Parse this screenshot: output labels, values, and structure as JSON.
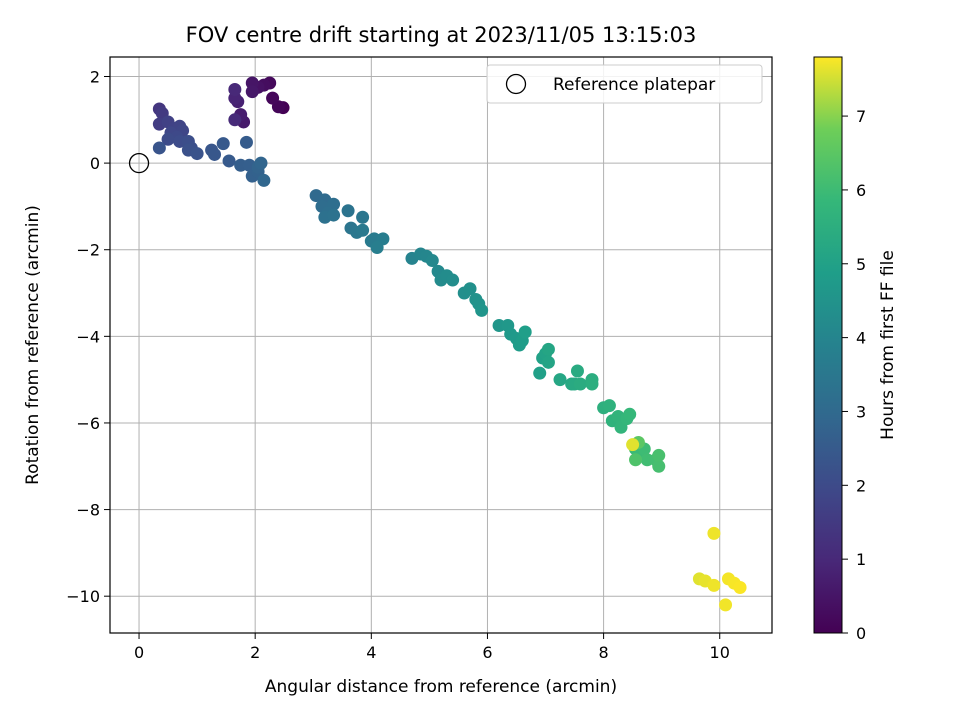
{
  "chart_data": {
    "type": "scatter",
    "title": "FOV centre drift starting at 2023/11/05 13:15:03",
    "xlabel": "Angular distance from reference (arcmin)",
    "ylabel": "Rotation from reference (arcmin)",
    "xlim": [
      -0.5,
      10.9
    ],
    "ylim": [
      -10.85,
      2.45
    ],
    "xticks": [
      0,
      2,
      4,
      6,
      8,
      10
    ],
    "yticks": [
      2,
      0,
      -2,
      -4,
      -6,
      -8,
      -10
    ],
    "grid": true,
    "legend": {
      "entries": [
        "Reference platepar"
      ],
      "placement": "top-right"
    },
    "reference": {
      "x": 0,
      "y": 0,
      "label": "Reference platepar"
    },
    "colorbar": {
      "label": "Hours from first FF file",
      "colormap": "viridis",
      "range": [
        0,
        7.8
      ],
      "ticks": [
        0,
        1,
        2,
        3,
        4,
        5,
        6,
        7
      ]
    },
    "points": [
      [
        2.48,
        1.28,
        0.0
      ],
      [
        2.4,
        1.3,
        0.1
      ],
      [
        2.3,
        1.5,
        0.15
      ],
      [
        2.25,
        1.85,
        0.2
      ],
      [
        2.15,
        1.8,
        0.3
      ],
      [
        2.05,
        1.75,
        0.4
      ],
      [
        1.95,
        1.85,
        0.5
      ],
      [
        1.95,
        1.65,
        0.55
      ],
      [
        1.8,
        0.95,
        0.6
      ],
      [
        1.75,
        1.12,
        0.7
      ],
      [
        1.7,
        1.42,
        0.8
      ],
      [
        1.65,
        1.5,
        0.9
      ],
      [
        1.65,
        1.7,
        1.0
      ],
      [
        1.65,
        1.0,
        1.05
      ],
      [
        0.35,
        1.25,
        1.4
      ],
      [
        0.4,
        1.15,
        1.5
      ],
      [
        0.35,
        0.9,
        1.6
      ],
      [
        0.5,
        0.95,
        1.7
      ],
      [
        0.6,
        0.8,
        1.75
      ],
      [
        0.7,
        0.85,
        1.8
      ],
      [
        0.75,
        0.75,
        1.85
      ],
      [
        0.55,
        0.7,
        1.9
      ],
      [
        0.65,
        0.6,
        1.95
      ],
      [
        0.5,
        0.55,
        2.0
      ],
      [
        0.7,
        0.5,
        2.05
      ],
      [
        0.85,
        0.5,
        2.1
      ],
      [
        0.9,
        0.35,
        2.15
      ],
      [
        0.85,
        0.3,
        2.2
      ],
      [
        1.0,
        0.22,
        2.25
      ],
      [
        0.35,
        0.35,
        2.3
      ],
      [
        1.25,
        0.3,
        2.35
      ],
      [
        1.3,
        0.2,
        2.4
      ],
      [
        1.45,
        0.45,
        2.45
      ],
      [
        1.55,
        0.05,
        2.5
      ],
      [
        1.85,
        0.48,
        2.55
      ],
      [
        1.75,
        -0.05,
        2.6
      ],
      [
        1.9,
        -0.05,
        2.65
      ],
      [
        1.95,
        -0.3,
        2.7
      ],
      [
        2.05,
        -0.2,
        2.75
      ],
      [
        2.05,
        -0.1,
        2.8
      ],
      [
        2.1,
        0.0,
        2.85
      ],
      [
        2.15,
        -0.4,
        2.9
      ],
      [
        3.05,
        -0.75,
        3.0
      ],
      [
        3.2,
        -0.85,
        3.05
      ],
      [
        3.15,
        -1.0,
        3.1
      ],
      [
        3.35,
        -0.95,
        3.15
      ],
      [
        3.25,
        -1.15,
        3.2
      ],
      [
        3.2,
        -1.25,
        3.25
      ],
      [
        3.35,
        -1.2,
        3.3
      ],
      [
        3.6,
        -1.1,
        3.35
      ],
      [
        3.65,
        -1.5,
        3.4
      ],
      [
        3.85,
        -1.25,
        3.45
      ],
      [
        3.75,
        -1.6,
        3.5
      ],
      [
        3.85,
        -1.55,
        3.55
      ],
      [
        4.0,
        -1.8,
        3.6
      ],
      [
        4.05,
        -1.75,
        3.65
      ],
      [
        4.2,
        -1.75,
        3.7
      ],
      [
        4.1,
        -1.95,
        3.75
      ],
      [
        4.7,
        -2.2,
        3.95
      ],
      [
        4.85,
        -2.1,
        4.0
      ],
      [
        4.95,
        -2.15,
        4.05
      ],
      [
        5.05,
        -2.25,
        4.1
      ],
      [
        5.15,
        -2.5,
        4.15
      ],
      [
        5.2,
        -2.7,
        4.2
      ],
      [
        5.3,
        -2.6,
        4.25
      ],
      [
        5.4,
        -2.7,
        4.3
      ],
      [
        5.6,
        -3.0,
        4.35
      ],
      [
        5.7,
        -2.9,
        4.4
      ],
      [
        5.8,
        -3.15,
        4.45
      ],
      [
        5.85,
        -3.25,
        4.5
      ],
      [
        5.9,
        -3.4,
        4.55
      ],
      [
        6.2,
        -3.75,
        4.6
      ],
      [
        6.35,
        -3.75,
        4.65
      ],
      [
        6.4,
        -3.95,
        4.7
      ],
      [
        6.5,
        -4.05,
        4.75
      ],
      [
        6.55,
        -4.2,
        4.8
      ],
      [
        6.6,
        -4.1,
        4.85
      ],
      [
        6.65,
        -3.9,
        4.9
      ],
      [
        6.9,
        -4.85,
        4.95
      ],
      [
        6.95,
        -4.5,
        5.0
      ],
      [
        7.0,
        -4.4,
        5.05
      ],
      [
        7.05,
        -4.6,
        5.1
      ],
      [
        7.05,
        -4.3,
        5.15
      ],
      [
        7.25,
        -5.0,
        5.2
      ],
      [
        7.45,
        -5.1,
        5.25
      ],
      [
        7.5,
        -5.1,
        5.3
      ],
      [
        7.55,
        -4.8,
        5.35
      ],
      [
        7.6,
        -5.1,
        5.4
      ],
      [
        7.8,
        -5.0,
        5.45
      ],
      [
        7.8,
        -5.1,
        5.5
      ],
      [
        8.0,
        -5.65,
        5.55
      ],
      [
        8.1,
        -5.6,
        5.6
      ],
      [
        8.15,
        -5.95,
        5.65
      ],
      [
        8.25,
        -5.85,
        5.7
      ],
      [
        8.3,
        -6.1,
        5.75
      ],
      [
        8.4,
        -5.9,
        5.8
      ],
      [
        8.45,
        -5.8,
        5.85
      ],
      [
        8.55,
        -6.6,
        5.9
      ],
      [
        8.6,
        -6.75,
        5.95
      ],
      [
        8.7,
        -6.6,
        6.0
      ],
      [
        8.75,
        -6.85,
        6.05
      ],
      [
        8.9,
        -6.85,
        6.1
      ],
      [
        8.95,
        -7.0,
        6.15
      ],
      [
        8.95,
        -6.75,
        6.2
      ],
      [
        8.55,
        -6.85,
        6.3
      ],
      [
        8.6,
        -6.45,
        6.5
      ],
      [
        8.5,
        -6.5,
        7.6
      ],
      [
        9.65,
        -9.6,
        7.6
      ],
      [
        9.75,
        -9.65,
        7.65
      ],
      [
        9.9,
        -8.55,
        7.7
      ],
      [
        9.9,
        -9.75,
        7.7
      ],
      [
        10.1,
        -10.2,
        7.72
      ],
      [
        10.15,
        -9.6,
        7.74
      ],
      [
        10.25,
        -9.7,
        7.76
      ],
      [
        10.35,
        -9.8,
        7.78
      ]
    ]
  }
}
